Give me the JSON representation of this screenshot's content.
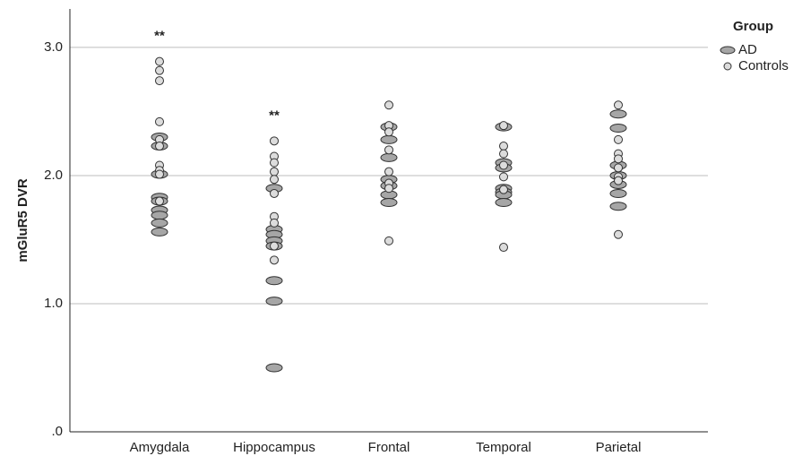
{
  "chart_data": {
    "type": "strip",
    "ylabel": "mGluR5 DVR",
    "categories": [
      "Amygdala",
      "Hippocampus",
      "Frontal",
      "Temporal",
      "Parietal"
    ],
    "ylim": [
      0,
      3.3
    ],
    "yticks": [
      {
        "value": 0,
        "label": ".0"
      },
      {
        "value": 1,
        "label": "1.0"
      },
      {
        "value": 2,
        "label": "2.0"
      },
      {
        "value": 3,
        "label": "3.0"
      }
    ],
    "grid": true,
    "legend_title": "Group",
    "legend_position": "right",
    "series": [
      {
        "name": "AD",
        "color": "#a6a6a6",
        "marker": "ellipse",
        "values": [
          [
            2.3,
            2.23,
            2.01,
            1.83,
            1.8,
            1.73,
            1.69,
            1.63,
            1.56
          ],
          [
            1.9,
            1.58,
            1.54,
            1.49,
            1.45,
            1.18,
            1.02,
            0.5
          ],
          [
            2.38,
            2.28,
            2.14,
            1.97,
            1.92,
            1.85,
            1.79
          ],
          [
            2.38,
            2.1,
            2.06,
            1.9,
            1.87,
            1.85,
            1.79
          ],
          [
            2.48,
            2.37,
            2.08,
            2.0,
            1.93,
            1.86,
            1.76
          ]
        ]
      },
      {
        "name": "Controls",
        "color": "#dcdcdc",
        "marker": "circle",
        "values": [
          [
            2.89,
            2.82,
            2.74,
            2.42,
            2.28,
            2.23,
            2.08,
            2.04,
            2.01,
            1.8
          ],
          [
            2.27,
            2.15,
            2.1,
            2.03,
            1.97,
            1.86,
            1.68,
            1.63,
            1.45,
            1.34
          ],
          [
            2.55,
            2.39,
            2.34,
            2.2,
            2.03,
            1.94,
            1.9,
            1.49
          ],
          [
            2.39,
            2.23,
            2.17,
            2.08,
            1.99,
            1.89,
            1.44
          ],
          [
            2.55,
            2.28,
            2.17,
            2.13,
            2.06,
            1.99,
            1.96,
            1.54
          ]
        ]
      }
    ],
    "annotations": [
      {
        "text": "**",
        "category": "Amygdala"
      },
      {
        "text": "**",
        "category": "Hippocampus"
      }
    ]
  }
}
